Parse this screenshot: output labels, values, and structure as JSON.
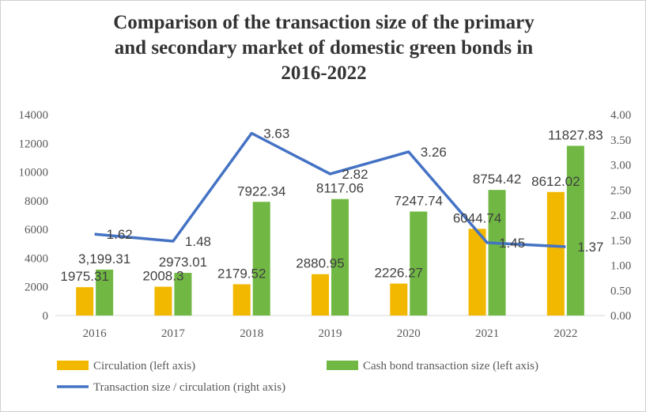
{
  "chart_data": {
    "type": "bar",
    "title_lines": [
      "Comparison of the transaction size of the primary",
      "and secondary market of domestic green bonds in",
      "2016-2022"
    ],
    "categories": [
      "2016",
      "2017",
      "2018",
      "2019",
      "2020",
      "2021",
      "2022"
    ],
    "series": [
      {
        "name": "Circulation (left axis)",
        "kind": "bar",
        "axis": "left",
        "color": "#F2B800",
        "values": [
          1975.31,
          2008.3,
          2179.52,
          2880.95,
          2226.27,
          6044.74,
          8612.02
        ],
        "labels": [
          "1975.31",
          "2008.3",
          "2179.52",
          "2880.95",
          "2226.27",
          "6044.74",
          "8612.02"
        ]
      },
      {
        "name": "Cash bond transaction size (left axis)",
        "kind": "bar",
        "axis": "left",
        "color": "#70B843",
        "values": [
          3199.31,
          2973.01,
          7922.34,
          8117.06,
          7247.74,
          8754.42,
          11827.83
        ],
        "labels": [
          "3,199.31",
          "2973.01",
          "7922.34",
          "8117.06",
          "7247.74",
          "8754.42",
          "11827.83"
        ]
      },
      {
        "name": "Transaction size / circulation (right axis)",
        "kind": "line",
        "axis": "right",
        "color": "#4472C4",
        "values": [
          1.62,
          1.48,
          3.63,
          2.82,
          3.26,
          1.45,
          1.37
        ],
        "labels": [
          "1.62",
          "1.48",
          "3.63",
          "2.82",
          "3.26",
          "1.45",
          "1.37"
        ]
      }
    ],
    "y_left": {
      "ylim": [
        0,
        14000
      ],
      "ticks": [
        "0",
        "2000",
        "4000",
        "6000",
        "8000",
        "10000",
        "12000",
        "14000"
      ]
    },
    "y_right": {
      "ylim": [
        0,
        4
      ],
      "ticks": [
        "0.00",
        "0.50",
        "1.00",
        "1.50",
        "2.00",
        "2.50",
        "3.00",
        "3.50",
        "4.00"
      ]
    },
    "grid": false,
    "legend_position": "bottom"
  }
}
